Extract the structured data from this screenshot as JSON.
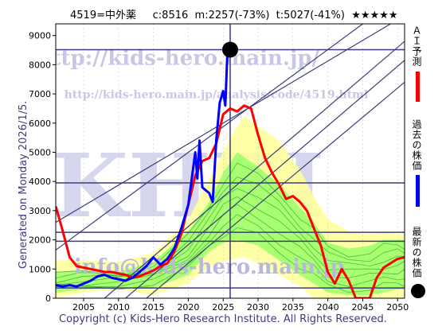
{
  "header": {
    "code": "4519=中外薬",
    "current": "c:8516",
    "mid": "m:2257(-73%)",
    "target": "t:5027(-41%)",
    "rating": "★★★★★"
  },
  "side_note": "Generated on Monday 2026/1/5.",
  "footer": "Copyright (c) Kids-Hero Research Institute. All Rights Reserved.",
  "watermarks": {
    "top": "http://kids-hero.main.jp/",
    "mid": "http://kids-hero.main.jp/analysis/code/4519.html",
    "big": "KHRI",
    "bottom": "info@kids-hero.main.jp"
  },
  "legend": {
    "ai": "ＡＩ予測",
    "past": "過去の株価",
    "latest": "最新の株価"
  },
  "colors": {
    "ai": "#ff0000",
    "past": "#0000ff",
    "latest": "#000000",
    "hline": "#3d3d7a",
    "band_outer": "#ffff99",
    "band_inner": "#99ff66"
  },
  "chart_data": {
    "type": "line",
    "xlim": [
      2001,
      2051
    ],
    "ylim": [
      0,
      9400
    ],
    "xticks": [
      2005,
      2010,
      2015,
      2020,
      2025,
      2030,
      2035,
      2040,
      2045,
      2050
    ],
    "yticks": [
      0,
      1000,
      2000,
      3000,
      4000,
      5000,
      6000,
      7000,
      8000,
      9000
    ],
    "hlines": [
      8516,
      3950,
      2257,
      1950,
      350
    ],
    "vline": 2026,
    "latest_point": [
      2026,
      8516
    ],
    "trend_lines": [
      [
        [
          2001,
          2600
        ],
        [
          2049,
          9400
        ]
      ],
      [
        [
          2001,
          1650
        ],
        [
          2045,
          9400
        ]
      ],
      [
        [
          2008,
          0
        ],
        [
          2051,
          8800
        ]
      ],
      [
        [
          2011,
          0
        ],
        [
          2051,
          8150
        ]
      ],
      [
        [
          2014,
          0
        ],
        [
          2051,
          7400
        ]
      ]
    ],
    "series": [
      {
        "name": "ＡＩ予測",
        "points": [
          [
            2001,
            3150
          ],
          [
            2002,
            2300
          ],
          [
            2003,
            1400
          ],
          [
            2004,
            1100
          ],
          [
            2005,
            1050
          ],
          [
            2006,
            1000
          ],
          [
            2007,
            950
          ],
          [
            2008,
            900
          ],
          [
            2009,
            900
          ],
          [
            2010,
            850
          ],
          [
            2011,
            800
          ],
          [
            2012,
            700
          ],
          [
            2013,
            750
          ],
          [
            2014,
            850
          ],
          [
            2015,
            950
          ],
          [
            2016,
            1100
          ],
          [
            2017,
            1200
          ],
          [
            2018,
            1600
          ],
          [
            2019,
            2200
          ],
          [
            2020,
            3200
          ],
          [
            2021,
            4200
          ],
          [
            2022,
            4700
          ],
          [
            2023,
            4800
          ],
          [
            2024,
            5300
          ],
          [
            2025,
            6300
          ],
          [
            2026,
            6500
          ],
          [
            2027,
            6400
          ],
          [
            2028,
            6600
          ],
          [
            2029,
            6500
          ],
          [
            2030,
            5600
          ],
          [
            2031,
            4800
          ],
          [
            2032,
            4300
          ],
          [
            2033,
            3900
          ],
          [
            2034,
            3400
          ],
          [
            2035,
            3500
          ],
          [
            2036,
            3300
          ],
          [
            2037,
            3000
          ],
          [
            2038,
            2400
          ],
          [
            2039,
            1800
          ],
          [
            2040,
            900
          ],
          [
            2041,
            500
          ],
          [
            2042,
            1000
          ],
          [
            2043,
            600
          ],
          [
            2044,
            0
          ],
          [
            2046,
            0
          ],
          [
            2047,
            700
          ],
          [
            2048,
            1050
          ],
          [
            2049,
            1200
          ],
          [
            2050,
            1350
          ],
          [
            2051,
            1400
          ]
        ]
      },
      {
        "name": "過去の株価",
        "points": [
          [
            2001,
            450
          ],
          [
            2002,
            400
          ],
          [
            2003,
            450
          ],
          [
            2004,
            400
          ],
          [
            2005,
            500
          ],
          [
            2006,
            600
          ],
          [
            2007,
            750
          ],
          [
            2008,
            800
          ],
          [
            2009,
            700
          ],
          [
            2010,
            650
          ],
          [
            2011,
            600
          ],
          [
            2012,
            700
          ],
          [
            2013,
            900
          ],
          [
            2014,
            1100
          ],
          [
            2015,
            1400
          ],
          [
            2016,
            1150
          ],
          [
            2017,
            1350
          ],
          [
            2018,
            1700
          ],
          [
            2019,
            2400
          ],
          [
            2020,
            3200
          ],
          [
            2020.5,
            4100
          ],
          [
            2021,
            5000
          ],
          [
            2021.3,
            4100
          ],
          [
            2021.6,
            5400
          ],
          [
            2022,
            3800
          ],
          [
            2022.5,
            3700
          ],
          [
            2023,
            3600
          ],
          [
            2023.5,
            3300
          ],
          [
            2024,
            5400
          ],
          [
            2024.5,
            6700
          ],
          [
            2025,
            7100
          ],
          [
            2025.3,
            6600
          ],
          [
            2025.6,
            8400
          ],
          [
            2026,
            8516
          ]
        ]
      }
    ],
    "band_outer": {
      "x": [
        2001,
        2005,
        2010,
        2015,
        2020,
        2023,
        2026,
        2028,
        2030,
        2033,
        2036,
        2038,
        2040,
        2043,
        2046,
        2048,
        2050,
        2051
      ],
      "upper": [
        1300,
        1300,
        1250,
        1550,
        2700,
        4100,
        5500,
        6250,
        5900,
        5400,
        4400,
        3500,
        2700,
        2300,
        2200,
        2300,
        2200,
        2200
      ],
      "lower": [
        0,
        200,
        300,
        100,
        500,
        1100,
        1300,
        1400,
        1200,
        800,
        400,
        0,
        0,
        0,
        0,
        0,
        0,
        0
      ]
    },
    "band_inner": {
      "x": [
        2001,
        2005,
        2010,
        2015,
        2020,
        2023,
        2025,
        2027,
        2030,
        2033,
        2036,
        2038,
        2040,
        2043,
        2046,
        2048,
        2050,
        2051
      ],
      "upper": [
        900,
        950,
        900,
        1250,
        2300,
        3300,
        4300,
        5000,
        4500,
        3900,
        3100,
        2600,
        1900,
        1700,
        1800,
        2000,
        2000,
        2000
      ],
      "lower": [
        200,
        300,
        350,
        350,
        800,
        1600,
        1900,
        2000,
        1800,
        1300,
        800,
        500,
        200,
        100,
        100,
        200,
        300,
        300
      ]
    }
  }
}
